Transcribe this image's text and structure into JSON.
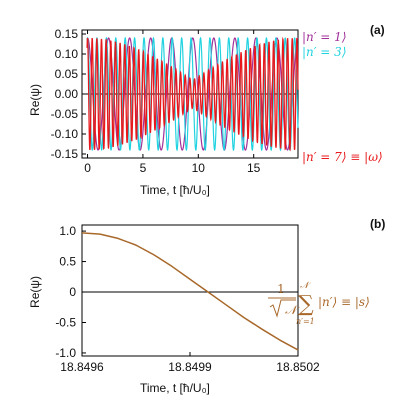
{
  "chart_data": [
    {
      "type": "line",
      "panel_label": "(a)",
      "xlabel": "Time, t [ħ/U₀]",
      "ylabel": "Re(ψ)",
      "xlim": [
        -0.5,
        19
      ],
      "ylim": [
        -0.16,
        0.16
      ],
      "x_ticks": [
        0,
        5,
        10,
        15
      ],
      "y_ticks": [
        0.15,
        0.1,
        0.05,
        0.0,
        -0.05,
        -0.1,
        -0.15
      ],
      "grid": false,
      "legend_position": "right",
      "series": [
        {
          "name": "|n′ = 1⟩",
          "color": "#a0309a",
          "amplitude": 0.14,
          "period": 1.9,
          "envelope": "constant"
        },
        {
          "name": "|n′ = 3⟩",
          "color": "#21d3e0",
          "amplitude": 0.14,
          "period": 0.85,
          "envelope": "constant"
        },
        {
          "name": "|n′ = 7⟩ ≡ |ω⟩",
          "color": "#e8191d",
          "amplitude": 0.14,
          "period": 0.42,
          "envelope": "beat",
          "beat_node_t": 9.5
        }
      ]
    },
    {
      "type": "line",
      "panel_label": "(b)",
      "xlabel": "Time, t [ħ/U₀]",
      "ylabel": "Re(ψ)",
      "xlim": [
        18.8496,
        18.8502
      ],
      "ylim": [
        -1.05,
        1.1
      ],
      "x_ticks": [
        "18.8496",
        "18.8499",
        "18.8502"
      ],
      "y_ticks": [
        "1.0",
        "0.5",
        "0",
        "-0.5",
        "-1.0"
      ],
      "grid": false,
      "series": [
        {
          "name": "(1/√𝒩) Σ_{n′=1}^{𝒩} |n′⟩ ≡ |s⟩",
          "color": "#a8682a",
          "x": [
            18.8496,
            18.84965,
            18.8497,
            18.84975,
            18.8498,
            18.84985,
            18.8499,
            18.84995,
            18.85,
            18.85005,
            18.8501,
            18.85015,
            18.8502
          ],
          "y": [
            0.97,
            0.95,
            0.88,
            0.77,
            0.61,
            0.42,
            0.21,
            0.0,
            -0.21,
            -0.42,
            -0.61,
            -0.79,
            -0.95
          ]
        }
      ],
      "annotation": {
        "prefix": "1",
        "sqrt": "𝒩",
        "sum_top": "𝒩",
        "sum_bottom": "n′=1",
        "suffix": "|n′⟩ ≡ |s⟩"
      }
    }
  ]
}
